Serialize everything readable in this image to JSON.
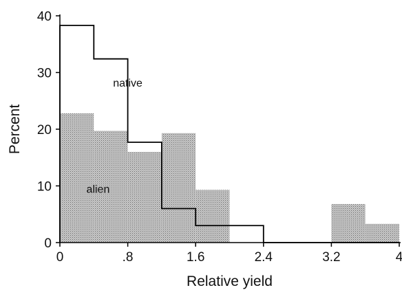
{
  "chart_data": {
    "type": "bar",
    "title": "",
    "xlabel": "Relative yield",
    "ylabel": "Percent",
    "xlim": [
      0,
      4
    ],
    "ylim": [
      0,
      40
    ],
    "x_ticks": [
      0,
      0.8,
      1.6,
      2.4,
      3.2,
      4
    ],
    "x_tick_labels": [
      "0",
      ".8",
      "1.6",
      "2.4",
      "3.2",
      "4"
    ],
    "y_ticks": [
      0,
      10,
      20,
      30,
      40
    ],
    "y_tick_labels": [
      "0",
      "10",
      "20",
      "30",
      "40"
    ],
    "bin_edges": [
      0,
      0.4,
      0.8,
      1.2,
      1.6,
      2.0,
      2.4,
      2.8,
      3.2,
      3.6,
      4.0
    ],
    "grid": false,
    "series": [
      {
        "name": "alien",
        "style": "dotted-fill",
        "values": [
          22.8,
          19.7,
          16.0,
          19.3,
          9.3,
          0,
          0,
          0,
          6.8,
          3.3
        ]
      },
      {
        "name": "native",
        "style": "outline",
        "values": [
          38.3,
          32.4,
          17.7,
          6.0,
          3.0,
          3.0,
          0,
          0,
          0,
          0
        ]
      }
    ],
    "colors": {
      "alien_fill": "#b8b8b8",
      "alien_dot": "#6a6a6a",
      "native_line": "#000000",
      "axis": "#000000"
    }
  }
}
